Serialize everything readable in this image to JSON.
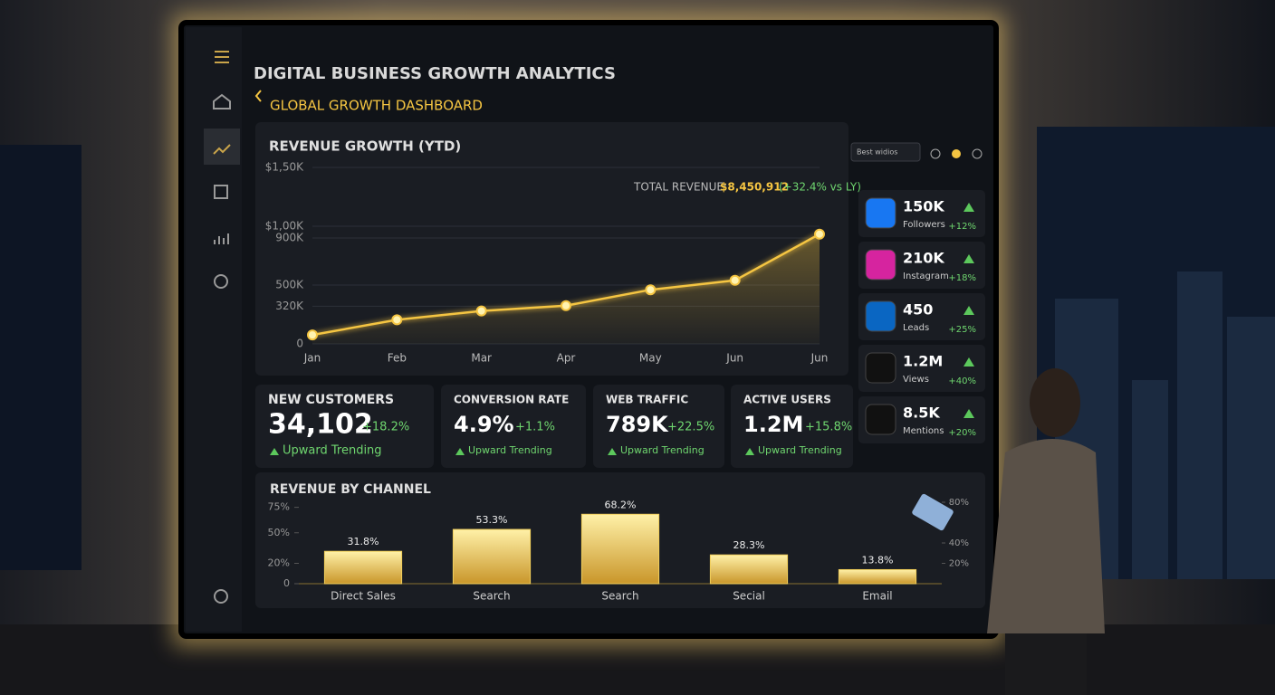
{
  "header": {
    "title": "DIGITAL BUSINESS GROWTH ANALYTICS",
    "breadcrumb": "GLOBAL GROWTH DASHBOARD",
    "filter": "Best widios"
  },
  "revenue_growth": {
    "type": "line",
    "title": "REVENUE GROWTH (YTD)",
    "total_label": "TOTAL REVENUE:",
    "total_value": "$8,450,912",
    "total_change": "(+32.4% vs LY)",
    "categories": [
      "Jan",
      "Feb",
      "Mar",
      "Apr",
      "May",
      "Jun",
      "Jun"
    ],
    "values": [
      76,
      205,
      280,
      325,
      460,
      540,
      933
    ],
    "color": "#f5c542",
    "ylim": [
      0,
      1500
    ],
    "yticks": [
      {
        "value": 1500,
        "label": "$1,50K"
      },
      {
        "value": 1000,
        "label": "$1,00K"
      },
      {
        "value": 900,
        "label": "900K"
      },
      {
        "value": 500,
        "label": "500K"
      },
      {
        "value": 320,
        "label": "320K"
      },
      0
    ],
    "grid": true
  },
  "kpis": [
    {
      "title": "NEW CUSTOMERS",
      "value": "34,102",
      "change": "+18.2%",
      "note": "Upward Trending"
    },
    {
      "title": "CONVERSION RATE",
      "value": "4.9%",
      "change": "+1.1%",
      "note": "Upward Trending"
    },
    {
      "title": "WEB TRAFFIC",
      "value": "789K",
      "change": "+22.5%",
      "note": "Upward Trending"
    },
    {
      "title": "ACTIVE USERS",
      "value": "1.2M",
      "change": "+15.8%",
      "note": "Upward Trending"
    }
  ],
  "social": [
    {
      "value": "150K",
      "label": "Followers",
      "change": "+12%"
    },
    {
      "value": "210K",
      "label": "Instagram",
      "change": "+18%"
    },
    {
      "value": "450",
      "label": "Leads",
      "change": "+25%"
    },
    {
      "value": "1.2M",
      "label": "Views",
      "change": "+40%"
    },
    {
      "value": "8.5K",
      "label": "Mentions",
      "change": "+20%"
    }
  ],
  "revenue_by_channel": {
    "type": "bar",
    "title": "REVENUE BY CHANNEL",
    "categories": [
      "Direct Sales",
      "Search",
      "Search",
      "Secial",
      "Email"
    ],
    "values": [
      31.8,
      53.3,
      68.2,
      28.3,
      13.8
    ],
    "value_labels": [
      "31.8%",
      "53.3%",
      "68.2%",
      "28.3%",
      "13.8%"
    ],
    "color": "#f2cf5b",
    "ylim": [
      0,
      80
    ],
    "yticks": [
      {
        "value": 75,
        "label": "75%"
      },
      {
        "value": 50,
        "label": "50%"
      },
      {
        "value": 20,
        "label": "20%"
      },
      0
    ],
    "y2lim": [
      0,
      80
    ],
    "y2ticks": [
      {
        "value": 80,
        "label": "80%"
      },
      {
        "value": 40,
        "label": "40%"
      },
      {
        "value": 20,
        "label": "20%"
      }
    ]
  }
}
